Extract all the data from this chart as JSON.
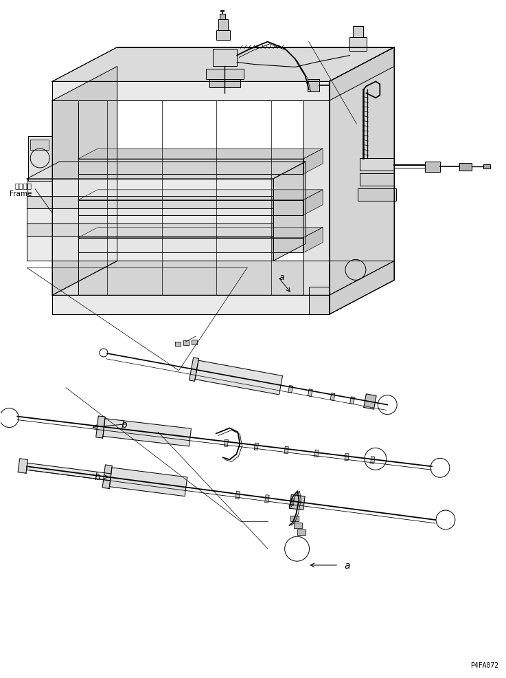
{
  "background_color": "#ffffff",
  "line_color": "#000000",
  "line_width": 0.7,
  "label_frame": "フレーム\nFrame",
  "label_a": "a",
  "label_b": "b",
  "part_code": "P4FA072",
  "fig_width": 7.37,
  "fig_height": 9.87,
  "dpi": 100
}
